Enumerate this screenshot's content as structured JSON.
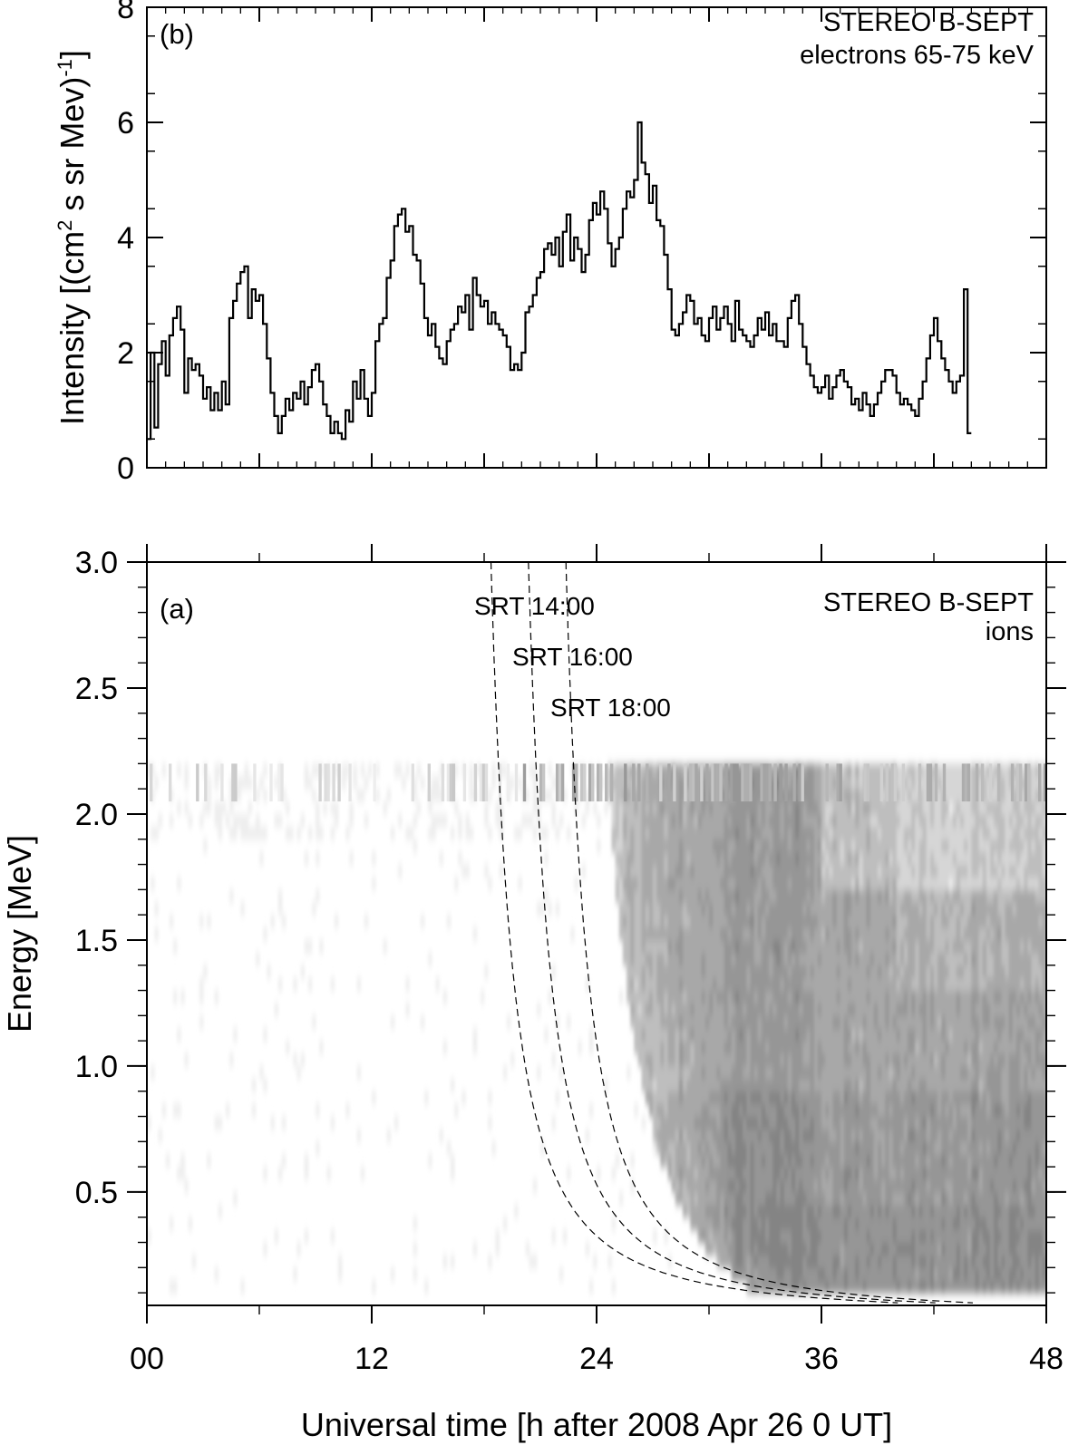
{
  "chart_data": [
    {
      "panel_id": "b",
      "type": "line",
      "panel_label": "(b)",
      "annotation": [
        "STEREO B-SEPT",
        "electrons 65-75 keV"
      ],
      "ylabel_parts": [
        "Intensity [(cm",
        "2",
        " s sr Mev)",
        "-1",
        "]"
      ],
      "ylim": [
        0,
        8
      ],
      "yticks": [
        0,
        2,
        4,
        6,
        8
      ],
      "xlim": [
        0,
        48
      ],
      "xticks": [
        0,
        6,
        12,
        18,
        24,
        30,
        36,
        42,
        48
      ],
      "step_hours": 0.2,
      "series": [
        {
          "name": "electrons 65-75 keV",
          "values": [
            0.5,
            2.0,
            0.7,
            1.8,
            2.2,
            1.6,
            2.3,
            2.6,
            2.8,
            2.4,
            1.3,
            1.9,
            1.7,
            1.8,
            1.6,
            1.2,
            1.4,
            1.0,
            1.3,
            1.0,
            1.5,
            1.1,
            2.6,
            2.9,
            3.2,
            3.4,
            3.5,
            2.6,
            3.1,
            2.9,
            3.0,
            2.5,
            1.9,
            1.3,
            0.9,
            0.6,
            0.9,
            1.2,
            1.0,
            1.3,
            1.2,
            1.5,
            1.1,
            1.4,
            1.7,
            1.8,
            1.5,
            1.1,
            0.9,
            0.6,
            0.8,
            0.6,
            0.5,
            1.0,
            0.8,
            1.5,
            1.2,
            1.7,
            1.2,
            0.9,
            1.3,
            2.2,
            2.5,
            2.6,
            3.3,
            3.6,
            4.2,
            4.4,
            4.5,
            4.1,
            4.2,
            3.7,
            3.6,
            3.2,
            2.6,
            2.3,
            2.5,
            2.1,
            1.9,
            1.8,
            2.2,
            2.4,
            2.5,
            2.8,
            2.7,
            3.0,
            2.4,
            3.3,
            3.0,
            2.8,
            2.9,
            2.5,
            2.7,
            2.5,
            2.4,
            2.3,
            2.1,
            1.7,
            1.8,
            1.7,
            2.0,
            2.7,
            2.8,
            3.0,
            3.3,
            3.4,
            3.8,
            3.9,
            3.7,
            4.0,
            3.5,
            4.1,
            4.4,
            3.6,
            4.0,
            3.8,
            3.4,
            3.7,
            4.3,
            4.6,
            4.4,
            4.8,
            4.5,
            3.9,
            3.5,
            3.8,
            4.0,
            4.5,
            4.8,
            4.7,
            5.0,
            6.0,
            5.3,
            5.1,
            4.6,
            4.9,
            4.3,
            4.2,
            3.7,
            3.1,
            2.4,
            2.3,
            2.5,
            2.7,
            3.0,
            2.9,
            2.5,
            2.6,
            2.3,
            2.2,
            2.6,
            2.8,
            2.4,
            2.6,
            2.8,
            2.5,
            2.2,
            2.9,
            2.4,
            2.3,
            2.2,
            2.1,
            2.3,
            2.6,
            2.4,
            2.7,
            2.3,
            2.5,
            2.2,
            2.2,
            2.1,
            2.6,
            2.9,
            3.0,
            2.5,
            2.1,
            1.8,
            1.6,
            1.4,
            1.3,
            1.4,
            1.6,
            1.2,
            1.4,
            1.6,
            1.7,
            1.5,
            1.4,
            1.1,
            1.2,
            1.0,
            1.3,
            1.1,
            0.9,
            1.1,
            1.3,
            1.5,
            1.7,
            1.7,
            1.6,
            1.3,
            1.1,
            1.2,
            1.1,
            1.0,
            0.9,
            1.2,
            1.5,
            1.9,
            2.3,
            2.6,
            2.2,
            1.9,
            1.7,
            1.5,
            1.3,
            1.5,
            1.6,
            3.1,
            0.6
          ]
        }
      ]
    },
    {
      "panel_id": "a",
      "type": "heatmap",
      "panel_label": "(a)",
      "annotation": [
        "STEREO B-SEPT",
        "ions"
      ],
      "xlabel": "Universal time [h after 2008 Apr 26 0 UT]",
      "ylabel": "Energy [MeV]",
      "xlim": [
        0,
        48
      ],
      "ylim": [
        0.05,
        3.0
      ],
      "xticks": [
        0,
        12,
        24,
        36,
        48
      ],
      "xtick_labels": [
        "00",
        "12",
        "24",
        "36",
        "48"
      ],
      "yticks": [
        0.5,
        1.0,
        1.5,
        2.0,
        2.5,
        3.0
      ],
      "ytick_labels": [
        "0.5",
        "1.0",
        "1.5",
        "2.0",
        "2.5",
        "3.0"
      ],
      "energy_range_mev": [
        0.1,
        2.2
      ],
      "description": "grayscale intensity spectrogram, onset with velocity dispersion after ~20 h",
      "dispersion_curves": [
        {
          "label": "SRT 14:00",
          "release_hour": 14,
          "energy_top_mev": 3.0
        },
        {
          "label": "SRT 16:00",
          "release_hour": 16,
          "energy_top_mev": 3.0
        },
        {
          "label": "SRT 18:00",
          "release_hour": 18,
          "energy_top_mev": 3.0
        }
      ]
    }
  ]
}
